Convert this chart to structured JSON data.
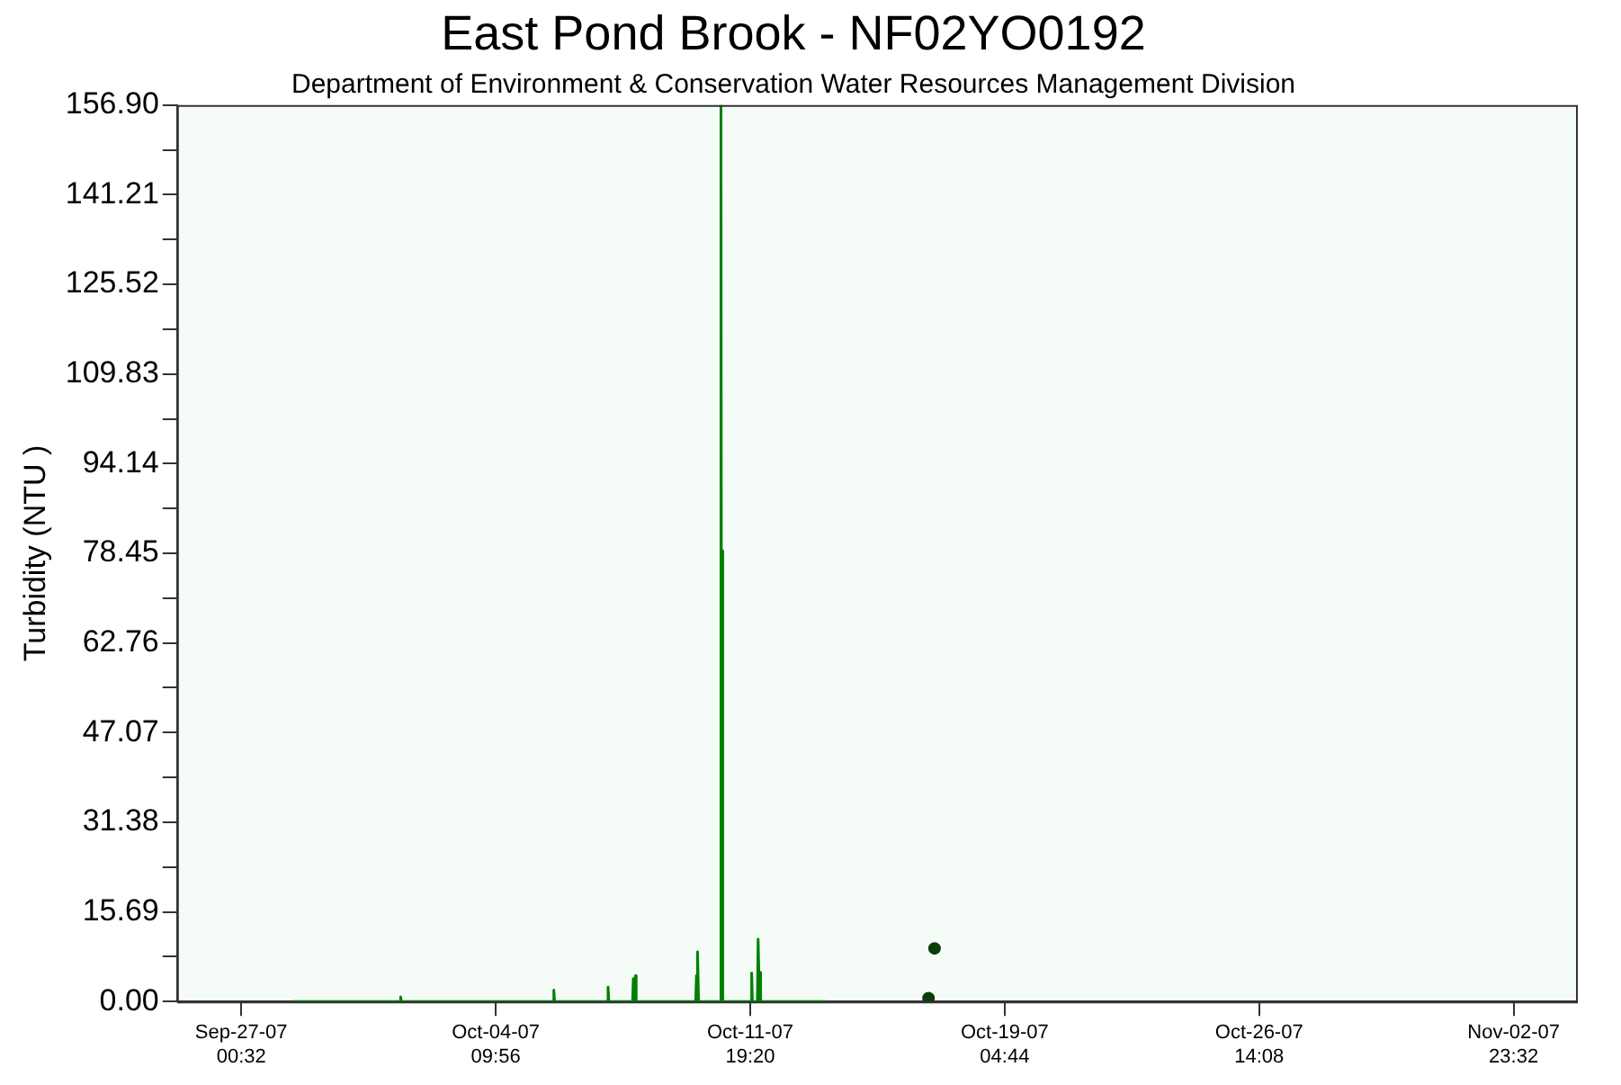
{
  "chart_data": {
    "type": "line",
    "title": "East Pond Brook - NF02YO0192",
    "subtitle": "Department of Environment & Conservation Water Resources Management Division",
    "ylabel": "Turbidity (NTU )",
    "series": [
      {
        "type": "line",
        "color": "#008000",
        "marker": "none",
        "x": [
          "--09-28T12:00",
          "--10-01T15:08",
          "--10-01T15:38",
          "--10-01T16:08",
          "--10-06T01:56",
          "--10-06T02:26",
          "--10-06T02:56",
          "--10-07T15:44",
          "--10-07T16:14",
          "--10-07T16:44",
          "--10-08T09:20",
          "--10-08T09:50",
          "--10-08T10:50",
          "--10-08T11:20",
          "--10-08T11:50",
          "--10-10T05:20",
          "--10-10T05:50",
          "--10-10T06:20",
          "--10-10T06:50",
          "--10-10T07:20",
          "--10-10T22:26",
          "--10-10T22:56",
          "--10-10T23:26",
          "--10-10T23:56",
          "--10-11T00:26",
          "--10-11T19:50",
          "--10-11T20:20",
          "--10-11T20:50",
          "--10-12T00:20",
          "--10-12T00:50",
          "--10-12T01:50",
          "--10-12T02:20",
          "--10-12T02:50",
          "--10-14T00:00"
        ],
        "values": [
          0,
          0,
          0.8,
          0,
          0,
          2,
          0,
          0,
          2.5,
          0,
          0,
          4,
          0,
          4.5,
          0,
          0,
          4.5,
          0,
          8.7,
          0,
          0,
          156.9,
          0,
          78.9,
          0,
          0,
          5,
          0,
          0,
          10.9,
          0,
          5.1,
          0,
          0
        ]
      },
      {
        "type": "scatter",
        "color": "#0a3d0a",
        "marker": "circle",
        "x": [
          "--10-16T23:38",
          "--10-17T03:50"
        ],
        "values": [
          0.6,
          9.3
        ]
      }
    ],
    "xlim": [
      "--09-25T03:44",
      "--11-04T19:02"
    ],
    "xticks": [
      {
        "value": "--09-27T00:32",
        "label": "Sep-27-07\n00:32"
      },
      {
        "value": "--10-04T09:56",
        "label": "Oct-04-07\n09:56"
      },
      {
        "value": "--10-11T19:20",
        "label": "Oct-11-07\n19:20"
      },
      {
        "value": "--10-19T04:44",
        "label": "Oct-19-07\n04:44"
      },
      {
        "value": "--10-26T14:08",
        "label": "Oct-26-07\n14:08"
      },
      {
        "value": "--11-02T23:32",
        "label": "Nov-02-07\n23:32"
      }
    ],
    "ylim": [
      0,
      156.9
    ],
    "yticks": [
      {
        "value": 0,
        "label": "0.00"
      },
      {
        "value": 7.845,
        "label": null
      },
      15.69,
      {
        "value": 23.535,
        "label": null
      },
      31.38,
      {
        "value": 39.225,
        "label": null
      },
      47.07,
      {
        "value": 54.915,
        "label": null
      },
      62.76,
      {
        "value": 70.605,
        "label": null
      },
      78.45,
      {
        "value": 86.295,
        "label": null
      },
      94.14,
      {
        "value": 101.985,
        "label": null
      },
      109.83,
      {
        "value": 117.675,
        "label": null
      },
      125.52,
      {
        "value": 133.365,
        "label": null
      },
      141.21,
      {
        "value": 149.055,
        "label": null
      },
      {
        "value": 156.9,
        "label": "156.90"
      }
    ],
    "grid": false,
    "legend": false
  }
}
